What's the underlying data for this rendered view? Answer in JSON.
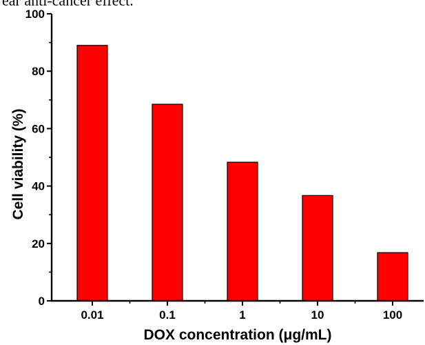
{
  "caption_fragment": "ear anti-cancer effect.",
  "colors": {
    "bar_fill": "#ff0000",
    "bar_stroke": "#000000",
    "axis": "#000000"
  },
  "chart_data": {
    "type": "bar",
    "title": "",
    "xlabel": "DOX concentration (μg/mL)",
    "ylabel": "Cell viability (%)",
    "categories": [
      "0.01",
      "0.1",
      "1",
      "10",
      "100"
    ],
    "values": [
      89,
      68.5,
      48.3,
      36.7,
      16.8
    ],
    "ylim": [
      0,
      100
    ],
    "yticks": [
      0,
      20,
      40,
      60,
      80,
      100
    ],
    "grid": false,
    "legend": "none"
  }
}
